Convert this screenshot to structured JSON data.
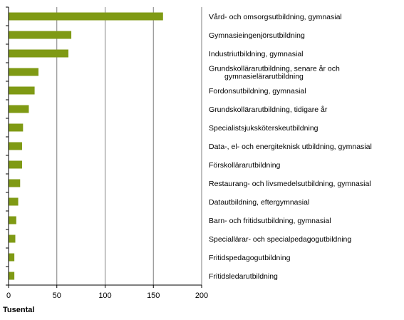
{
  "chart_data": {
    "type": "bar",
    "orientation": "horizontal",
    "categories": [
      "Vård- och omsorgsutbildning, gymnasial",
      "Gymnasieingenjörsutbildning",
      "Industriutbildning, gymnasial",
      [
        "Grundskollärarutbildning, senare år och",
        "gymnasielärarutbildning"
      ],
      "Fordonsutbildning, gymnasial",
      "Grundskollärarutbildning, tidigare år",
      "Specialistsjuksköterskeutbildning",
      "Data-, el- och energiteknisk utbildning, gymnasial",
      "Förskollärarutbildning",
      "Restaurang- och livsmedelsutbildning, gymnasial",
      "Datautbildning, eftergymnasial",
      "Barn- och fritidsutbildning, gymnasial",
      "Speciallärar- och specialpedagogutbildning",
      "Fritidspedagogutbildning",
      "Fritidsledarutbildning"
    ],
    "values": [
      160,
      65,
      62,
      31,
      27,
      21,
      15,
      14,
      14,
      12,
      10,
      8,
      7,
      6,
      6
    ],
    "xlabel": "Tusental",
    "xlim": [
      0,
      200
    ],
    "xticks": [
      0,
      50,
      100,
      150,
      200
    ],
    "grid": true,
    "legend": "none",
    "bar_color": "#7f9a14",
    "grid_color": "#7f7f7f"
  }
}
